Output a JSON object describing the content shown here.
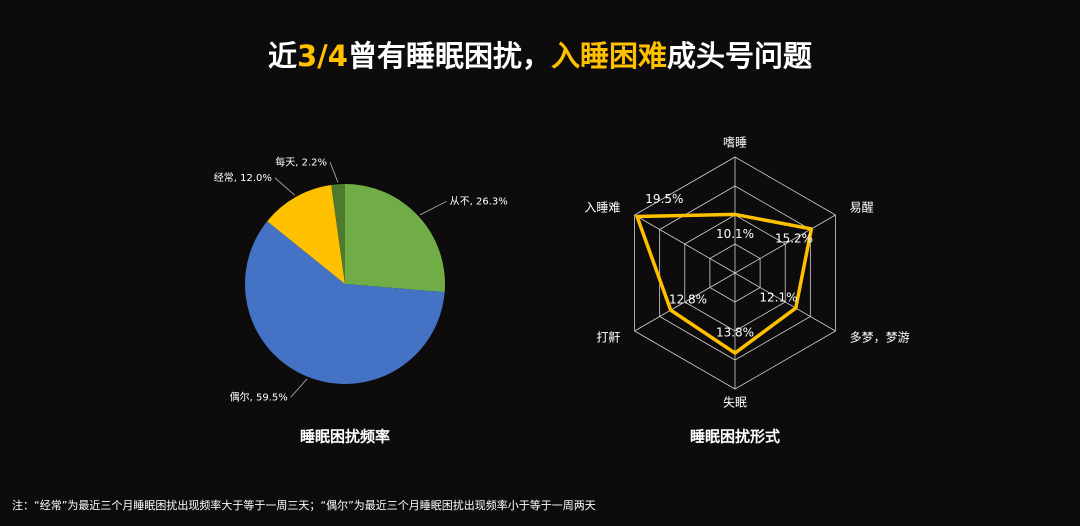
{
  "title_parts": [
    {
      "text": "近",
      "highlight": false
    },
    {
      "text": "3/4",
      "highlight": true
    },
    {
      "text": "曾有睡眠困扰，",
      "highlight": false
    },
    {
      "text": "入睡困难",
      "highlight": true
    },
    {
      "text": "成头号问题",
      "highlight": false
    }
  ],
  "highlight_color": "#ffc000",
  "chart_data": [
    {
      "type": "pie",
      "title": "睡眠困扰频率",
      "categories": [
        "从不",
        "偶尔",
        "经常",
        "每天"
      ],
      "values": [
        26.3,
        59.5,
        12.0,
        2.2
      ],
      "value_labels": [
        "26.3%",
        "59.5%",
        "12.0%",
        "2.2%"
      ],
      "label_separator": ", ",
      "colors": [
        "#70ad47",
        "#4472c4",
        "#ffc000",
        "#4f7a2e"
      ]
    },
    {
      "type": "radar",
      "title": "睡眠困扰形式",
      "categories": [
        "嗜睡",
        "易醒",
        "多梦，梦游",
        "失眠",
        "打鼾",
        "入睡难"
      ],
      "values": [
        10.1,
        15.2,
        12.1,
        13.8,
        12.8,
        19.5
      ],
      "value_labels": [
        "10.1%",
        "15.2%",
        "12.1%",
        "13.8%",
        "12.8%",
        "19.5%"
      ],
      "color": "#ffc000",
      "rlim": [
        0,
        20
      ],
      "rticks": [
        5,
        10,
        15,
        20
      ]
    }
  ],
  "footnote": "注：“经常”为最近三个月睡眠困扰出现频率大于等于一周三天；“偶尔”为最近三个月睡眠困扰出现频率小于等于一周两天"
}
